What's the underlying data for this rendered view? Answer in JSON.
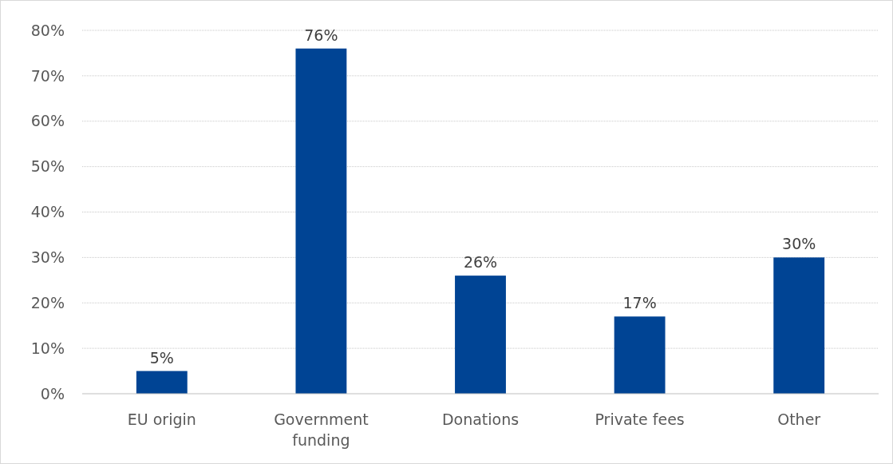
{
  "chart_data": {
    "type": "bar",
    "categories": [
      "EU origin",
      "Government funding",
      "Donations",
      "Private fees",
      "Other"
    ],
    "values": [
      5,
      76,
      26,
      17,
      30
    ],
    "value_labels": [
      "5%",
      "76%",
      "26%",
      "17%",
      "30%"
    ],
    "color": "#004494",
    "ylim": [
      0,
      80
    ],
    "yticks": [
      {
        "value": 0,
        "label": "0%"
      },
      {
        "value": 10,
        "label": "10%"
      },
      {
        "value": 20,
        "label": "20%"
      },
      {
        "value": 30,
        "label": "30%"
      },
      {
        "value": 40,
        "label": "40%"
      },
      {
        "value": 50,
        "label": "50%"
      },
      {
        "value": 60,
        "label": "60%"
      },
      {
        "value": 70,
        "label": "70%"
      },
      {
        "value": 80,
        "label": "80%"
      }
    ],
    "grid": "y"
  }
}
